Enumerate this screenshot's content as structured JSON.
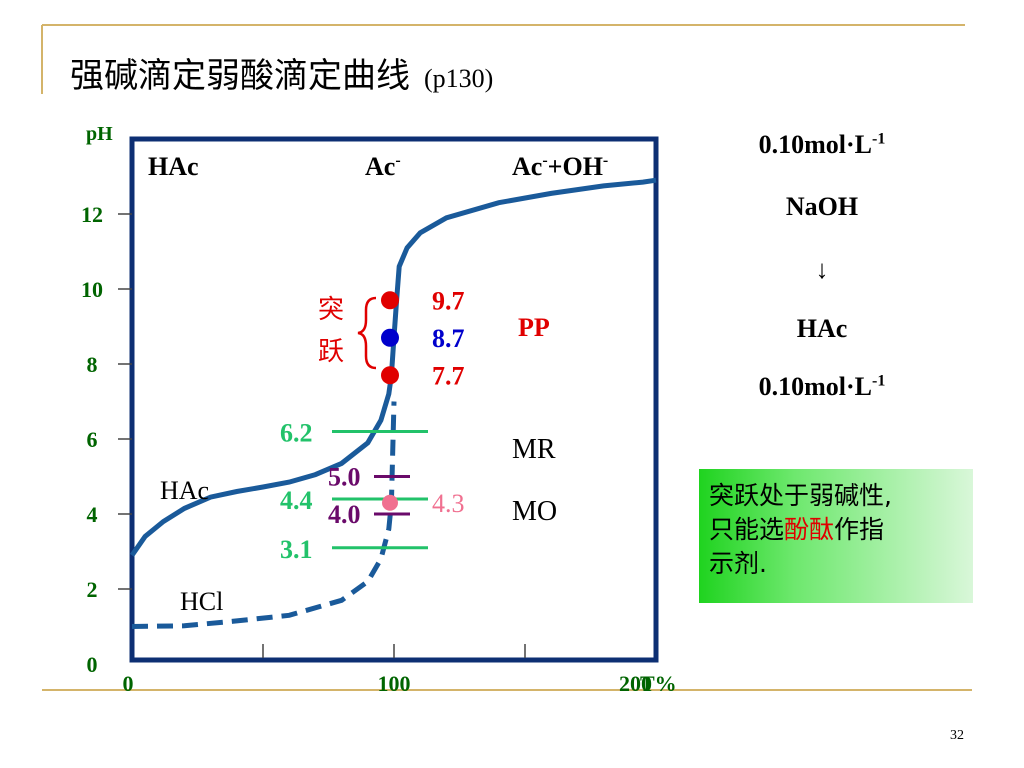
{
  "slide": {
    "title_parts": [
      {
        "text": "强碱",
        "color": "#0000cc"
      },
      {
        "text": "滴定",
        "color": "#000000"
      },
      {
        "text": "弱酸",
        "color": "#e00000"
      },
      {
        "text": "滴定曲线",
        "color": "#000000"
      }
    ],
    "title_ref": "(p130)",
    "page_number": "32"
  },
  "side_info": {
    "titrant_conc": "0.10mol·L",
    "titrant_conc_sup": "-1",
    "titrant": "NaOH",
    "arrow": "↓",
    "analyte": "HAc",
    "analyte_conc": "0.10mol·L",
    "analyte_conc_sup": "-1"
  },
  "note": {
    "line1": "突跃处于弱碱性,",
    "line2_pre": "只能选",
    "line2_highlight": "酚酞",
    "line2_post": "作指",
    "line3": "示剂.",
    "highlight_color": "#e00000"
  },
  "chart_data": {
    "type": "line",
    "ylabel": "pH",
    "xlabel": "T%",
    "xlim": [
      0,
      200
    ],
    "ylim": [
      0,
      14
    ],
    "x_ticks": [
      "0",
      "100",
      "200"
    ],
    "y_ticks": [
      "0",
      "2",
      "4",
      "6",
      "8",
      "10",
      "12"
    ],
    "colors": {
      "curve": "#1a5a9a",
      "frame": "#0d2f73",
      "jump": "#e00000",
      "mr_line": "#22c26a",
      "mo_line": "#6a0a6a",
      "mo_dot": "#f07090"
    },
    "series": [
      {
        "name": "HAc",
        "style": "solid",
        "points": [
          [
            0,
            2.9
          ],
          [
            5,
            3.4
          ],
          [
            12,
            3.8
          ],
          [
            20,
            4.15
          ],
          [
            30,
            4.45
          ],
          [
            40,
            4.6
          ],
          [
            50,
            4.72
          ],
          [
            60,
            4.85
          ],
          [
            70,
            5.05
          ],
          [
            80,
            5.35
          ],
          [
            90,
            5.9
          ],
          [
            95,
            6.5
          ],
          [
            98,
            7.2
          ],
          [
            99,
            7.7
          ],
          [
            100,
            8.72
          ],
          [
            101,
            9.7
          ],
          [
            102,
            10.6
          ],
          [
            105,
            11.1
          ],
          [
            110,
            11.5
          ],
          [
            120,
            11.9
          ],
          [
            140,
            12.3
          ],
          [
            160,
            12.55
          ],
          [
            180,
            12.75
          ],
          [
            195,
            12.85
          ],
          [
            200,
            12.9
          ]
        ]
      },
      {
        "name": "HCl",
        "style": "dashed",
        "points": [
          [
            0,
            1.0
          ],
          [
            20,
            1.02
          ],
          [
            40,
            1.15
          ],
          [
            60,
            1.3
          ],
          [
            80,
            1.7
          ],
          [
            90,
            2.2
          ],
          [
            95,
            2.8
          ],
          [
            98,
            3.6
          ],
          [
            99,
            4.3
          ],
          [
            100,
            7.0
          ]
        ]
      }
    ],
    "region_labels": {
      "top_left": "HAc",
      "top_mid": "Ac",
      "top_mid_sup": "-",
      "top_right_1": "Ac",
      "top_right_sup1": "-",
      "top_right_2": "+OH",
      "top_right_sup2": "-"
    },
    "curve_labels": {
      "hac": "HAc",
      "hcl": "HCl"
    },
    "jump": {
      "label_1": "突",
      "label_2": "跃",
      "points": [
        {
          "x": 100,
          "y": 9.7,
          "label": "9.7",
          "color": "#e00000"
        },
        {
          "x": 100,
          "y": 8.7,
          "label": "8.7",
          "color": "#0000cc"
        },
        {
          "x": 100,
          "y": 7.7,
          "label": "7.7",
          "color": "#e00000"
        }
      ],
      "indicator": "PP"
    },
    "mr": {
      "indicator": "MR",
      "levels": [
        {
          "y": 6.2,
          "label": "6.2"
        },
        {
          "y": 4.4,
          "label": "4.4"
        }
      ],
      "level_low": {
        "y": 3.1,
        "label": "3.1"
      }
    },
    "mo": {
      "indicator": "MO",
      "levels": [
        {
          "y": 5.0,
          "label": "5.0"
        },
        {
          "y": 4.0,
          "label": "4.0"
        }
      ],
      "dot": {
        "y": 4.3,
        "label": "4.3"
      }
    }
  }
}
